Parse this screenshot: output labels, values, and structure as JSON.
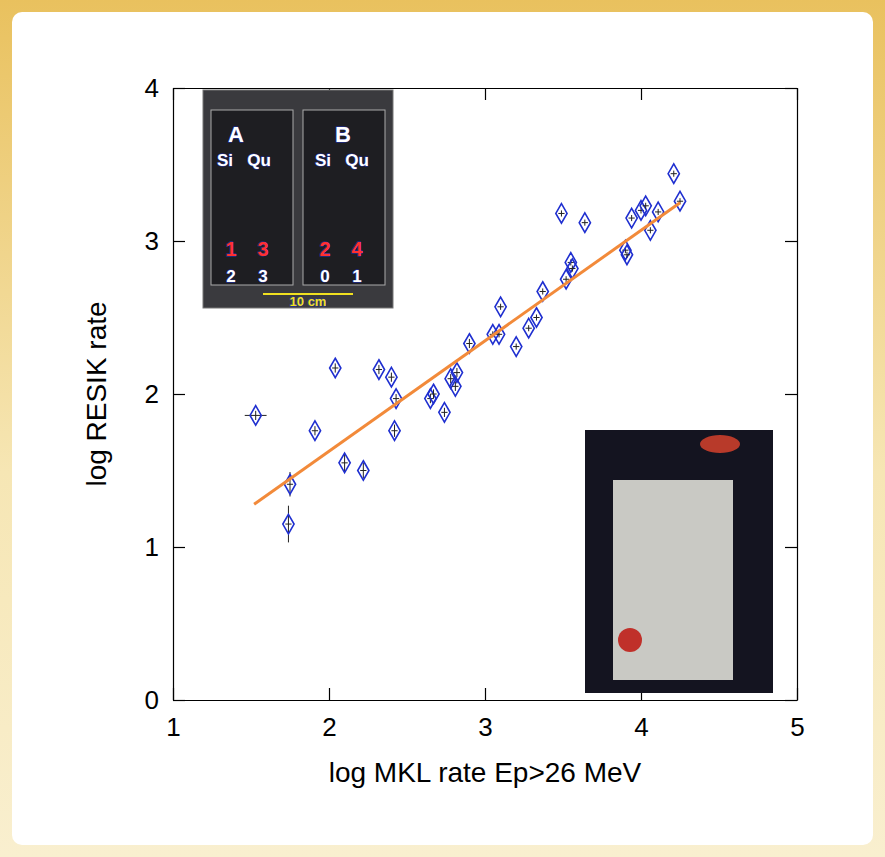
{
  "chart_data": {
    "type": "scatter",
    "x_label": "log MKL rate Ep>26 MeV",
    "y_label": "log RESIK rate",
    "xlim": [
      1,
      5
    ],
    "ylim": [
      0,
      4
    ],
    "xticks": [
      1,
      2,
      3,
      4,
      5
    ],
    "yticks": [
      0,
      1,
      2,
      3,
      4
    ],
    "grid": false,
    "series": [
      {
        "type": "scatter",
        "marker": "diamond",
        "color": "#1f2fd0",
        "x": [
          1.53,
          1.75,
          1.74,
          1.91,
          2.04,
          2.1,
          2.22,
          2.32,
          2.4,
          2.43,
          2.42,
          2.65,
          2.67,
          2.74,
          2.78,
          2.81,
          2.82,
          2.9,
          3.05,
          3.1,
          3.09,
          3.2,
          3.28,
          3.33,
          3.37,
          3.49,
          3.52,
          3.55,
          3.56,
          3.64,
          3.9,
          3.91,
          3.94,
          4.0,
          4.03,
          4.06,
          4.11,
          4.21,
          4.25
        ],
        "values": [
          1.86,
          1.41,
          1.15,
          1.76,
          2.17,
          1.55,
          1.5,
          2.16,
          2.11,
          1.97,
          1.76,
          1.97,
          2.0,
          1.88,
          2.1,
          2.05,
          2.14,
          2.33,
          2.39,
          2.57,
          2.39,
          2.31,
          2.43,
          2.5,
          2.67,
          3.18,
          2.75,
          2.86,
          2.82,
          3.12,
          2.94,
          2.91,
          3.15,
          3.2,
          3.23,
          3.07,
          3.19,
          3.44,
          3.26
        ],
        "x_errors": [
          0.07,
          0.02,
          0.02,
          0.02,
          0.02,
          0.02,
          0.02,
          0.02,
          0.02,
          0.02,
          0.02,
          0.02,
          0.02,
          0.02,
          0.02,
          0.02,
          0.02,
          0.02,
          0.02,
          0.02,
          0.02,
          0.02,
          0.02,
          0.02,
          0.02,
          0.02,
          0.02,
          0.02,
          0.02,
          0.02,
          0.02,
          0.02,
          0.02,
          0.02,
          0.02,
          0.02,
          0.02,
          0.02,
          0.02
        ],
        "errors": [
          0.03,
          0.08,
          0.12,
          0.03,
          0.03,
          0.06,
          0.05,
          0.03,
          0.03,
          0.03,
          0.04,
          0.03,
          0.03,
          0.03,
          0.03,
          0.03,
          0.03,
          0.03,
          0.02,
          0.02,
          0.02,
          0.02,
          0.02,
          0.02,
          0.02,
          0.02,
          0.02,
          0.02,
          0.02,
          0.02,
          0.02,
          0.02,
          0.02,
          0.02,
          0.02,
          0.02,
          0.02,
          0.02,
          0.02
        ]
      },
      {
        "type": "line",
        "color": "#f28a3a",
        "line_style": "solid",
        "x": [
          1.52,
          4.25
        ],
        "values": [
          1.28,
          3.25
        ]
      }
    ],
    "annotations": [
      "A",
      "B",
      "Si",
      "Qu",
      "Si",
      "Qu",
      "1",
      "3",
      "2",
      "4",
      "2",
      "3",
      "0",
      "1",
      "10 cm"
    ]
  }
}
